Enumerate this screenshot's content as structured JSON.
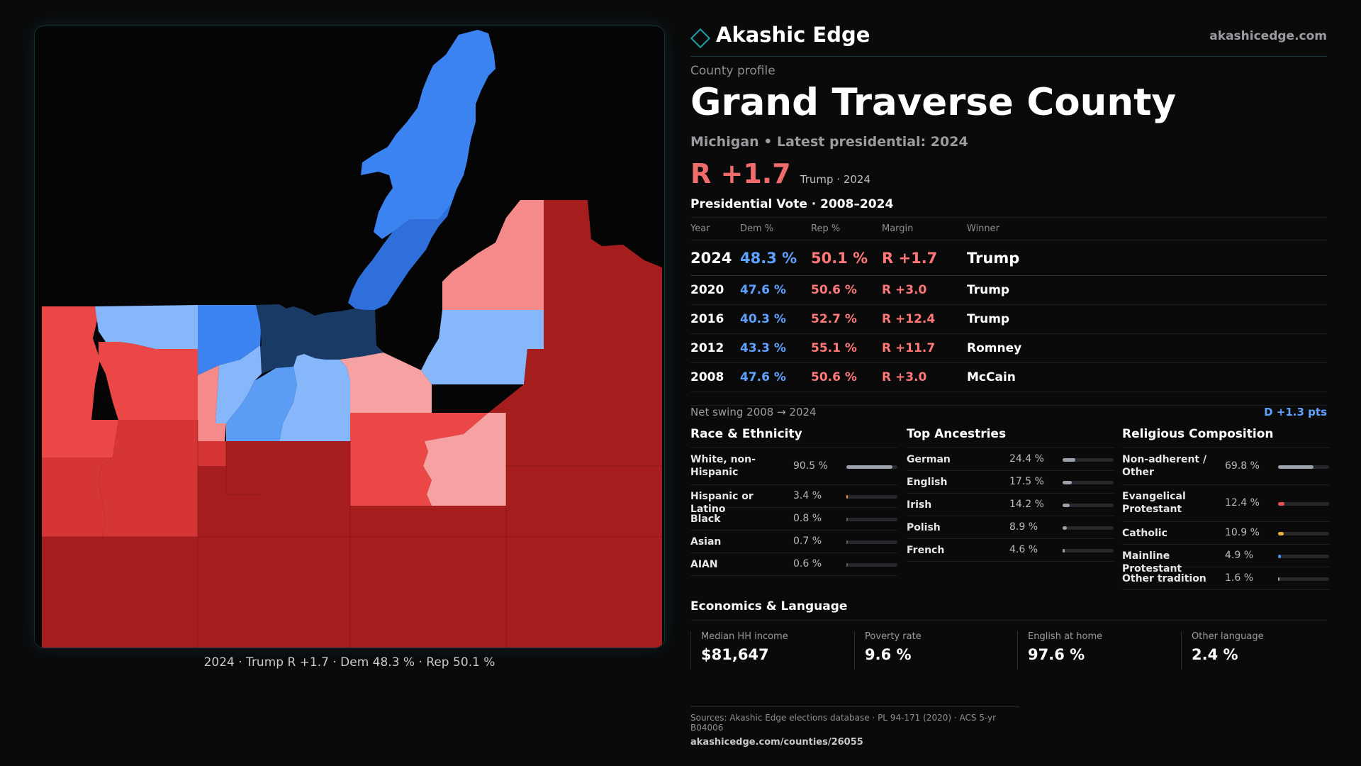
{
  "map": {
    "caption": "2024 · Trump R +1.7 · Dem 48.3 % · Rep 50.1 %",
    "colors": {
      "background": "#050506",
      "dem_dark": "#1a3a66",
      "dem_strong": "#2f6fdc",
      "dem": "#3c83f2",
      "dem_mid": "#5b9cf5",
      "dem_light": "#86b7fb",
      "rep_light": "#f7a2a2",
      "rep_pink": "#f58a8a",
      "rep": "#ec4747",
      "rep_mid": "#d63535",
      "rep_dark": "#a61d1d"
    }
  },
  "brand": {
    "name": "Akashic Edge",
    "url": "akashicedge.com",
    "accent": "#1ba3a8"
  },
  "profile": {
    "kicker": "County profile",
    "title": "Grand Traverse County",
    "subline": "Michigan • Latest presidential: 2024",
    "headline_margin": "R +1.7",
    "headline_who": "Trump · 2024"
  },
  "votes": {
    "title": "Presidential Vote · 2008–2024",
    "headers": [
      "Year",
      "Dem %",
      "Rep %",
      "Margin",
      "Winner"
    ],
    "rows": [
      {
        "year": "2024",
        "dem": "48.3 %",
        "rep": "50.1 %",
        "margin": "R +1.7",
        "winner": "Trump"
      },
      {
        "year": "2020",
        "dem": "47.6 %",
        "rep": "50.6 %",
        "margin": "R +3.0",
        "winner": "Trump"
      },
      {
        "year": "2016",
        "dem": "40.3 %",
        "rep": "52.7 %",
        "margin": "R +12.4",
        "winner": "Trump"
      },
      {
        "year": "2012",
        "dem": "43.3 %",
        "rep": "55.1 %",
        "margin": "R +11.7",
        "winner": "Romney"
      },
      {
        "year": "2008",
        "dem": "47.6 %",
        "rep": "50.6 %",
        "margin": "R +3.0",
        "winner": "McCain"
      }
    ],
    "swing_label": "Net swing 2008 → 2024",
    "swing_value": "D +1.3 pts"
  },
  "race": {
    "title": "Race & Ethnicity",
    "items": [
      {
        "label": "White, non-Hispanic",
        "value": "90.5 %",
        "share": 0.905,
        "color": "#9aa1ab"
      },
      {
        "label": "Hispanic or Latino",
        "value": "3.4 %",
        "share": 0.034,
        "color": "#f0902f"
      },
      {
        "label": "Black",
        "value": "0.8 %",
        "share": 0.008,
        "color": "#5b5b61"
      },
      {
        "label": "Asian",
        "value": "0.7 %",
        "share": 0.007,
        "color": "#5b5b61"
      },
      {
        "label": "AIAN",
        "value": "0.6 %",
        "share": 0.006,
        "color": "#5b5b61"
      }
    ]
  },
  "ancestry": {
    "title": "Top Ancestries",
    "items": [
      {
        "label": "German",
        "value": "24.4 %",
        "share": 0.244,
        "color": "#9aa1ab"
      },
      {
        "label": "English",
        "value": "17.5 %",
        "share": 0.175,
        "color": "#9aa1ab"
      },
      {
        "label": "Irish",
        "value": "14.2 %",
        "share": 0.142,
        "color": "#9aa1ab"
      },
      {
        "label": "Polish",
        "value": "8.9 %",
        "share": 0.089,
        "color": "#9aa1ab"
      },
      {
        "label": "French",
        "value": "4.6 %",
        "share": 0.046,
        "color": "#9aa1ab"
      }
    ]
  },
  "religion": {
    "title": "Religious Composition",
    "items": [
      {
        "label": "Non-adherent / Other",
        "value": "69.8 %",
        "share": 0.698,
        "color": "#9aa1ab"
      },
      {
        "label": "Evangelical Protestant",
        "value": "12.4 %",
        "share": 0.124,
        "color": "#ec4f4f"
      },
      {
        "label": "Catholic",
        "value": "10.9 %",
        "share": 0.109,
        "color": "#e7b13a"
      },
      {
        "label": "Mainline Protestant",
        "value": "4.9 %",
        "share": 0.049,
        "color": "#4d8ef3"
      },
      {
        "label": "Other tradition",
        "value": "1.6 %",
        "share": 0.016,
        "color": "#9aa1ab"
      }
    ]
  },
  "economics": {
    "title": "Economics & Language",
    "items": [
      {
        "label": "Median HH income",
        "value": "$81,647"
      },
      {
        "label": "Poverty rate",
        "value": "9.6 %"
      },
      {
        "label": "English at home",
        "value": "97.6 %"
      },
      {
        "label": "Other language",
        "value": "2.4 %"
      }
    ]
  },
  "sources": {
    "line1": "Sources: Akashic Edge elections database · PL 94-171 (2020) · ACS 5-yr B04006",
    "line2": "akashicedge.com/counties/26055"
  }
}
